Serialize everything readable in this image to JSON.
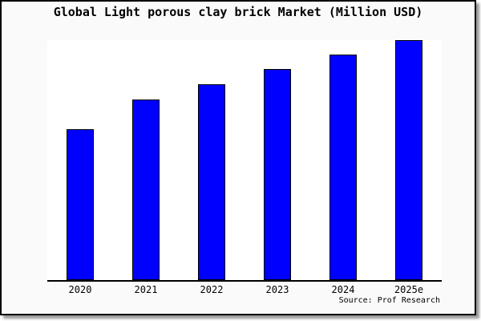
{
  "window": {
    "background": "#fafafa",
    "border_color": "#000000",
    "shadow_color": "#999999",
    "plot_background": "#ffffff"
  },
  "chart_data": {
    "type": "bar",
    "title": "Global Light porous clay brick Market (Million USD)",
    "categories": [
      "2020",
      "2021",
      "2022",
      "2023",
      "2024",
      "2025e"
    ],
    "values": [
      62.9,
      75.3,
      81.6,
      88.0,
      94.0,
      100
    ],
    "values_note": "No y-axis or data labels shown; values are estimated bar heights as percent of the tallest (2025e) bar",
    "bar_color": "#0000ff",
    "bar_border_color": "#000000",
    "xlabel": "",
    "ylabel": "",
    "ylim": [
      0,
      100
    ],
    "grid": false,
    "legend": false,
    "axis_lines": "bottom-only",
    "source_caption": "Source: Prof Research"
  }
}
